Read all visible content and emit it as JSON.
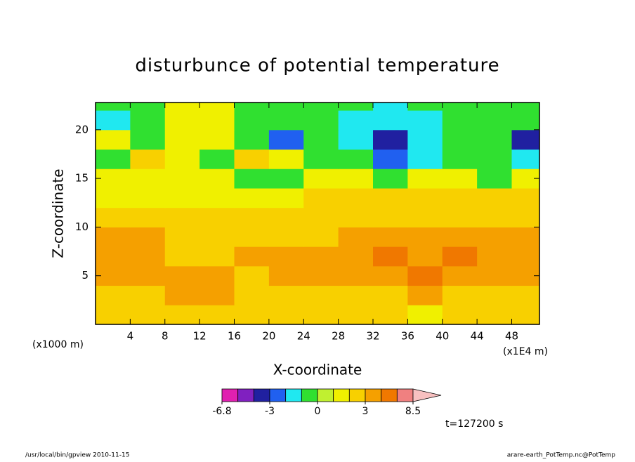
{
  "chart_data": {
    "type": "contour",
    "title": "disturbunce of potential temperature",
    "x_label": "X-coordinate",
    "y_label": "Z-coordinate",
    "x_unit": "(x1E4 m)",
    "y_unit": "(x1000 m)",
    "time_label": "t=127200 s",
    "footer_left": "/usr/local/bin/gpview   2010-11-15",
    "footer_right": "arare-earth_PotTemp.nc@PotTemp",
    "xlim": [
      0,
      51.2
    ],
    "ylim": [
      0,
      22.8
    ],
    "xticks": [
      4,
      8,
      12,
      16,
      20,
      24,
      28,
      32,
      36,
      40,
      44,
      48
    ],
    "yticks": [
      5,
      10,
      15,
      20
    ],
    "x": [
      2,
      6,
      10,
      14,
      18,
      22,
      26,
      30,
      34,
      38,
      42,
      46,
      50
    ],
    "y": [
      1,
      3,
      5,
      7,
      9,
      11,
      13,
      15,
      17,
      19,
      21,
      23
    ],
    "z": [
      [
        2.5,
        2.5,
        2.5,
        2.5,
        2.5,
        2.5,
        2.5,
        2.5,
        2.5,
        1.5,
        2.5,
        2.5,
        2.5
      ],
      [
        2.5,
        2.5,
        3.5,
        3.5,
        2.5,
        2.5,
        2.5,
        2.5,
        2.5,
        3.5,
        2.5,
        2.5,
        2.5
      ],
      [
        3.5,
        3.5,
        3.5,
        3.5,
        2.5,
        3.5,
        3.5,
        3.5,
        3.5,
        4.5,
        3.5,
        3.5,
        3.5
      ],
      [
        3.5,
        3.5,
        2.5,
        2.5,
        3.5,
        3.5,
        3.5,
        3.5,
        4.5,
        3.5,
        4.5,
        3.5,
        3.5
      ],
      [
        3.5,
        3.5,
        2.5,
        2.5,
        2.5,
        2.5,
        2.5,
        3.5,
        3.5,
        3.5,
        3.5,
        3.5,
        3.5
      ],
      [
        2.5,
        2.5,
        2.5,
        2.5,
        2.5,
        2.5,
        2.5,
        2.5,
        2.5,
        2.5,
        2.5,
        2.5,
        2.5
      ],
      [
        1.5,
        1.5,
        1.5,
        1.5,
        1.5,
        1.5,
        2.5,
        2.5,
        2.5,
        2.5,
        2.5,
        2.5,
        2.5
      ],
      [
        1.5,
        1.5,
        1.5,
        1.5,
        -0.5,
        -0.5,
        1.5,
        1.5,
        -0.5,
        1.5,
        1.5,
        -0.5,
        1.5
      ],
      [
        -0.5,
        2.5,
        1.5,
        -0.5,
        2.5,
        1.5,
        -0.5,
        -0.5,
        -2.5,
        -1.5,
        -0.5,
        -0.5,
        -1.5
      ],
      [
        1.5,
        -0.5,
        1.5,
        1.5,
        -0.5,
        -2.5,
        -0.5,
        -1.5,
        -3.5,
        -1.5,
        -0.5,
        -0.5,
        -3.5
      ],
      [
        -1.5,
        -0.5,
        1.5,
        1.5,
        -0.5,
        -0.5,
        -0.5,
        -1.5,
        -1.5,
        -1.5,
        -0.5,
        -0.5,
        -0.5
      ],
      [
        -0.5,
        -0.5,
        1.5,
        1.5,
        -0.5,
        -0.5,
        -0.5,
        -0.5,
        -1.5,
        -0.5,
        -0.5,
        -0.5,
        -0.5
      ]
    ],
    "levels": [
      -6.8,
      -5,
      -4,
      -3,
      -2,
      -1,
      0,
      1,
      2,
      3,
      4,
      5,
      8.5
    ],
    "colors": [
      "#e020b0",
      "#8020c0",
      "#2020a0",
      "#2060f0",
      "#20e8f0",
      "#30e030",
      "#c0f030",
      "#f0f000",
      "#f8d000",
      "#f5a000",
      "#f07800",
      "#f08080"
    ],
    "over_color": "#f8c0c0",
    "colorbar_ticks": [
      -6.8,
      -3,
      0,
      3,
      8.5
    ]
  }
}
